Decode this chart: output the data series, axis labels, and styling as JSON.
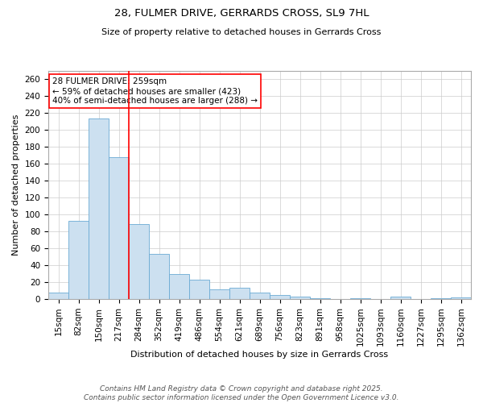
{
  "title_line1": "28, FULMER DRIVE, GERRARDS CROSS, SL9 7HL",
  "title_line2": "Size of property relative to detached houses in Gerrards Cross",
  "xlabel": "Distribution of detached houses by size in Gerrards Cross",
  "ylabel": "Number of detached properties",
  "bar_labels": [
    "15sqm",
    "82sqm",
    "150sqm",
    "217sqm",
    "284sqm",
    "352sqm",
    "419sqm",
    "486sqm",
    "554sqm",
    "621sqm",
    "689sqm",
    "756sqm",
    "823sqm",
    "891sqm",
    "958sqm",
    "1025sqm",
    "1093sqm",
    "1160sqm",
    "1227sqm",
    "1295sqm",
    "1362sqm"
  ],
  "bar_values": [
    8,
    93,
    214,
    168,
    89,
    53,
    30,
    23,
    11,
    13,
    8,
    5,
    3,
    1,
    0,
    1,
    0,
    3,
    0,
    1,
    2
  ],
  "bar_color": "#cce0f0",
  "bar_edge_color": "#6aaad4",
  "vline_color": "red",
  "vline_position": 3.5,
  "annotation_text": "28 FULMER DRIVE: 259sqm\n← 59% of detached houses are smaller (423)\n40% of semi-detached houses are larger (288) →",
  "annotation_box_color": "white",
  "annotation_box_edge_color": "red",
  "ylim": [
    0,
    270
  ],
  "yticks": [
    0,
    20,
    40,
    60,
    80,
    100,
    120,
    140,
    160,
    180,
    200,
    220,
    240,
    260
  ],
  "footnote_line1": "Contains HM Land Registry data © Crown copyright and database right 2025.",
  "footnote_line2": "Contains public sector information licensed under the Open Government Licence v3.0.",
  "background_color": "#ffffff",
  "grid_color": "#cccccc",
  "title1_fontsize": 9.5,
  "title2_fontsize": 8.0,
  "xlabel_fontsize": 8.0,
  "ylabel_fontsize": 8.0,
  "tick_fontsize": 7.5,
  "annotation_fontsize": 7.5,
  "footnote_fontsize": 6.5
}
